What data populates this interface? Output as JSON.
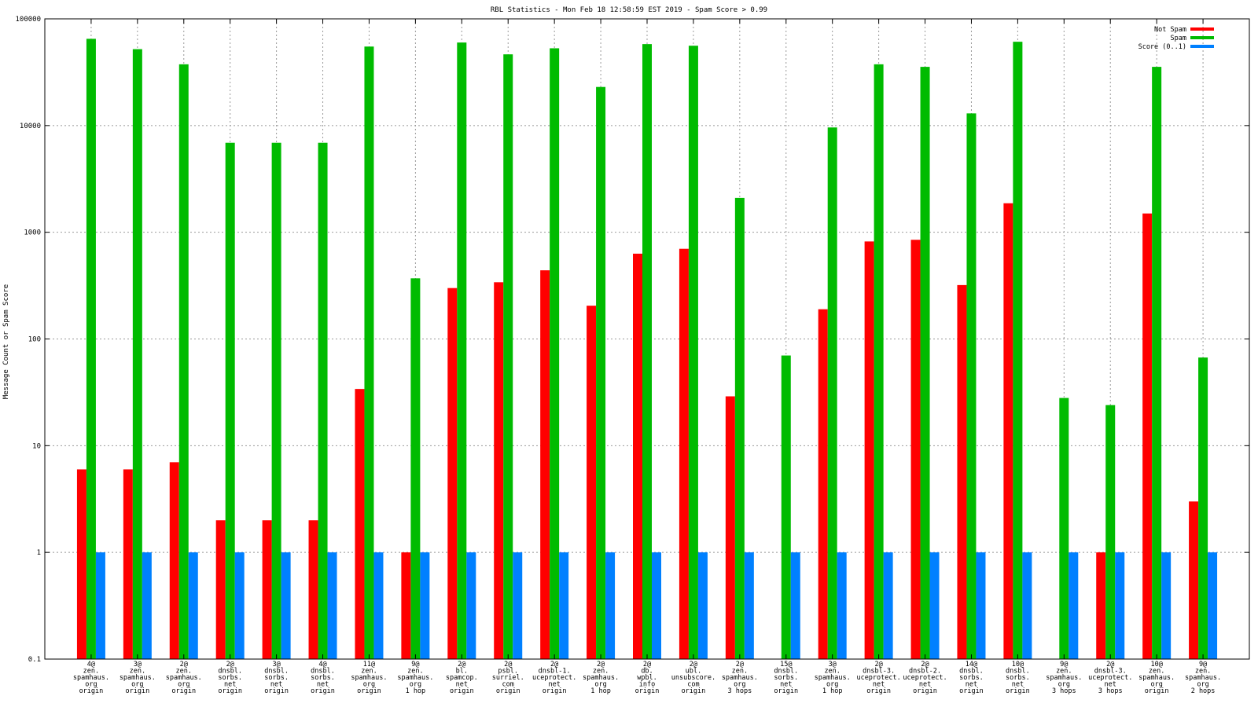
{
  "chart_data": {
    "type": "bar",
    "title": "RBL Statistics - Mon Feb 18 12:58:59 EST 2019 - Spam Score > 0.99",
    "ylabel": "Message Count or Spam Score",
    "xlabel": "",
    "yscale": "log",
    "ylim": [
      0.1,
      100000
    ],
    "yticks": [
      "0.1",
      "1",
      "10",
      "100",
      "1000",
      "10000",
      "100000"
    ],
    "grid": true,
    "legend_position": "top-right",
    "categories": [
      [
        "4@",
        "zen.",
        "spamhaus.",
        "org",
        "origin"
      ],
      [
        "3@",
        "zen.",
        "spamhaus.",
        "org",
        "origin"
      ],
      [
        "2@",
        "zen.",
        "spamhaus.",
        "org",
        "origin"
      ],
      [
        "2@",
        "dnsbl.",
        "sorbs.",
        "net",
        "origin"
      ],
      [
        "3@",
        "dnsbl.",
        "sorbs.",
        "net",
        "origin"
      ],
      [
        "4@",
        "dnsbl.",
        "sorbs.",
        "net",
        "origin"
      ],
      [
        "11@",
        "zen.",
        "spamhaus.",
        "org",
        "origin"
      ],
      [
        "9@",
        "zen.",
        "spamhaus.",
        "org",
        "1 hop"
      ],
      [
        "2@",
        "bl.",
        "spamcop.",
        "net",
        "origin"
      ],
      [
        "2@",
        "psbl.",
        "surriel.",
        "com",
        "origin"
      ],
      [
        "2@",
        "dnsbl-1.",
        "uceprotect.",
        "net",
        "origin"
      ],
      [
        "2@",
        "zen.",
        "spamhaus.",
        "org",
        "1 hop"
      ],
      [
        "2@",
        "db.",
        "wpbl.",
        "info",
        "origin"
      ],
      [
        "2@",
        "ubl.",
        "unsubscore.",
        "com",
        "origin"
      ],
      [
        "2@",
        "zen.",
        "spamhaus.",
        "org",
        "3 hops"
      ],
      [
        "15@",
        "dnsbl.",
        "sorbs.",
        "net",
        "origin"
      ],
      [
        "3@",
        "zen.",
        "spamhaus.",
        "org",
        "1 hop"
      ],
      [
        "2@",
        "dnsbl-3.",
        "uceprotect.",
        "net",
        "origin"
      ],
      [
        "2@",
        "dnsbl-2.",
        "uceprotect.",
        "net",
        "origin"
      ],
      [
        "14@",
        "dnsbl.",
        "sorbs.",
        "net",
        "origin"
      ],
      [
        "10@",
        "dnsbl.",
        "sorbs.",
        "net",
        "origin"
      ],
      [
        "9@",
        "zen.",
        "spamhaus.",
        "org",
        "3 hops"
      ],
      [
        "2@",
        "dnsbl-3.",
        "uceprotect.",
        "net",
        "3 hops"
      ],
      [
        "10@",
        "zen.",
        "spamhaus.",
        "org",
        "origin"
      ],
      [
        "9@",
        "zen.",
        "spamhaus.",
        "org",
        "2 hops"
      ]
    ],
    "series": [
      {
        "name": "Not Spam",
        "color": "#ff0000",
        "values": [
          6,
          6,
          7,
          2,
          2,
          2,
          34,
          1,
          300,
          340,
          440,
          205,
          630,
          700,
          29,
          null,
          190,
          820,
          850,
          320,
          1870,
          null,
          1,
          1500,
          3
        ]
      },
      {
        "name": "Spam",
        "color": "#00bb00",
        "values": [
          65000,
          52000,
          37500,
          6900,
          6900,
          6900,
          55000,
          370,
          60000,
          46500,
          53000,
          23000,
          58000,
          56000,
          2100,
          70,
          9600,
          37500,
          35500,
          13000,
          61000,
          28,
          24,
          35500,
          67
        ]
      },
      {
        "name": "Score (0..1)",
        "color": "#0080ff",
        "values": [
          1,
          1,
          1,
          1,
          1,
          1,
          1,
          1,
          1,
          1,
          1,
          1,
          1,
          1,
          1,
          1,
          1,
          1,
          1,
          1,
          1,
          1,
          1,
          1,
          1
        ]
      }
    ]
  }
}
